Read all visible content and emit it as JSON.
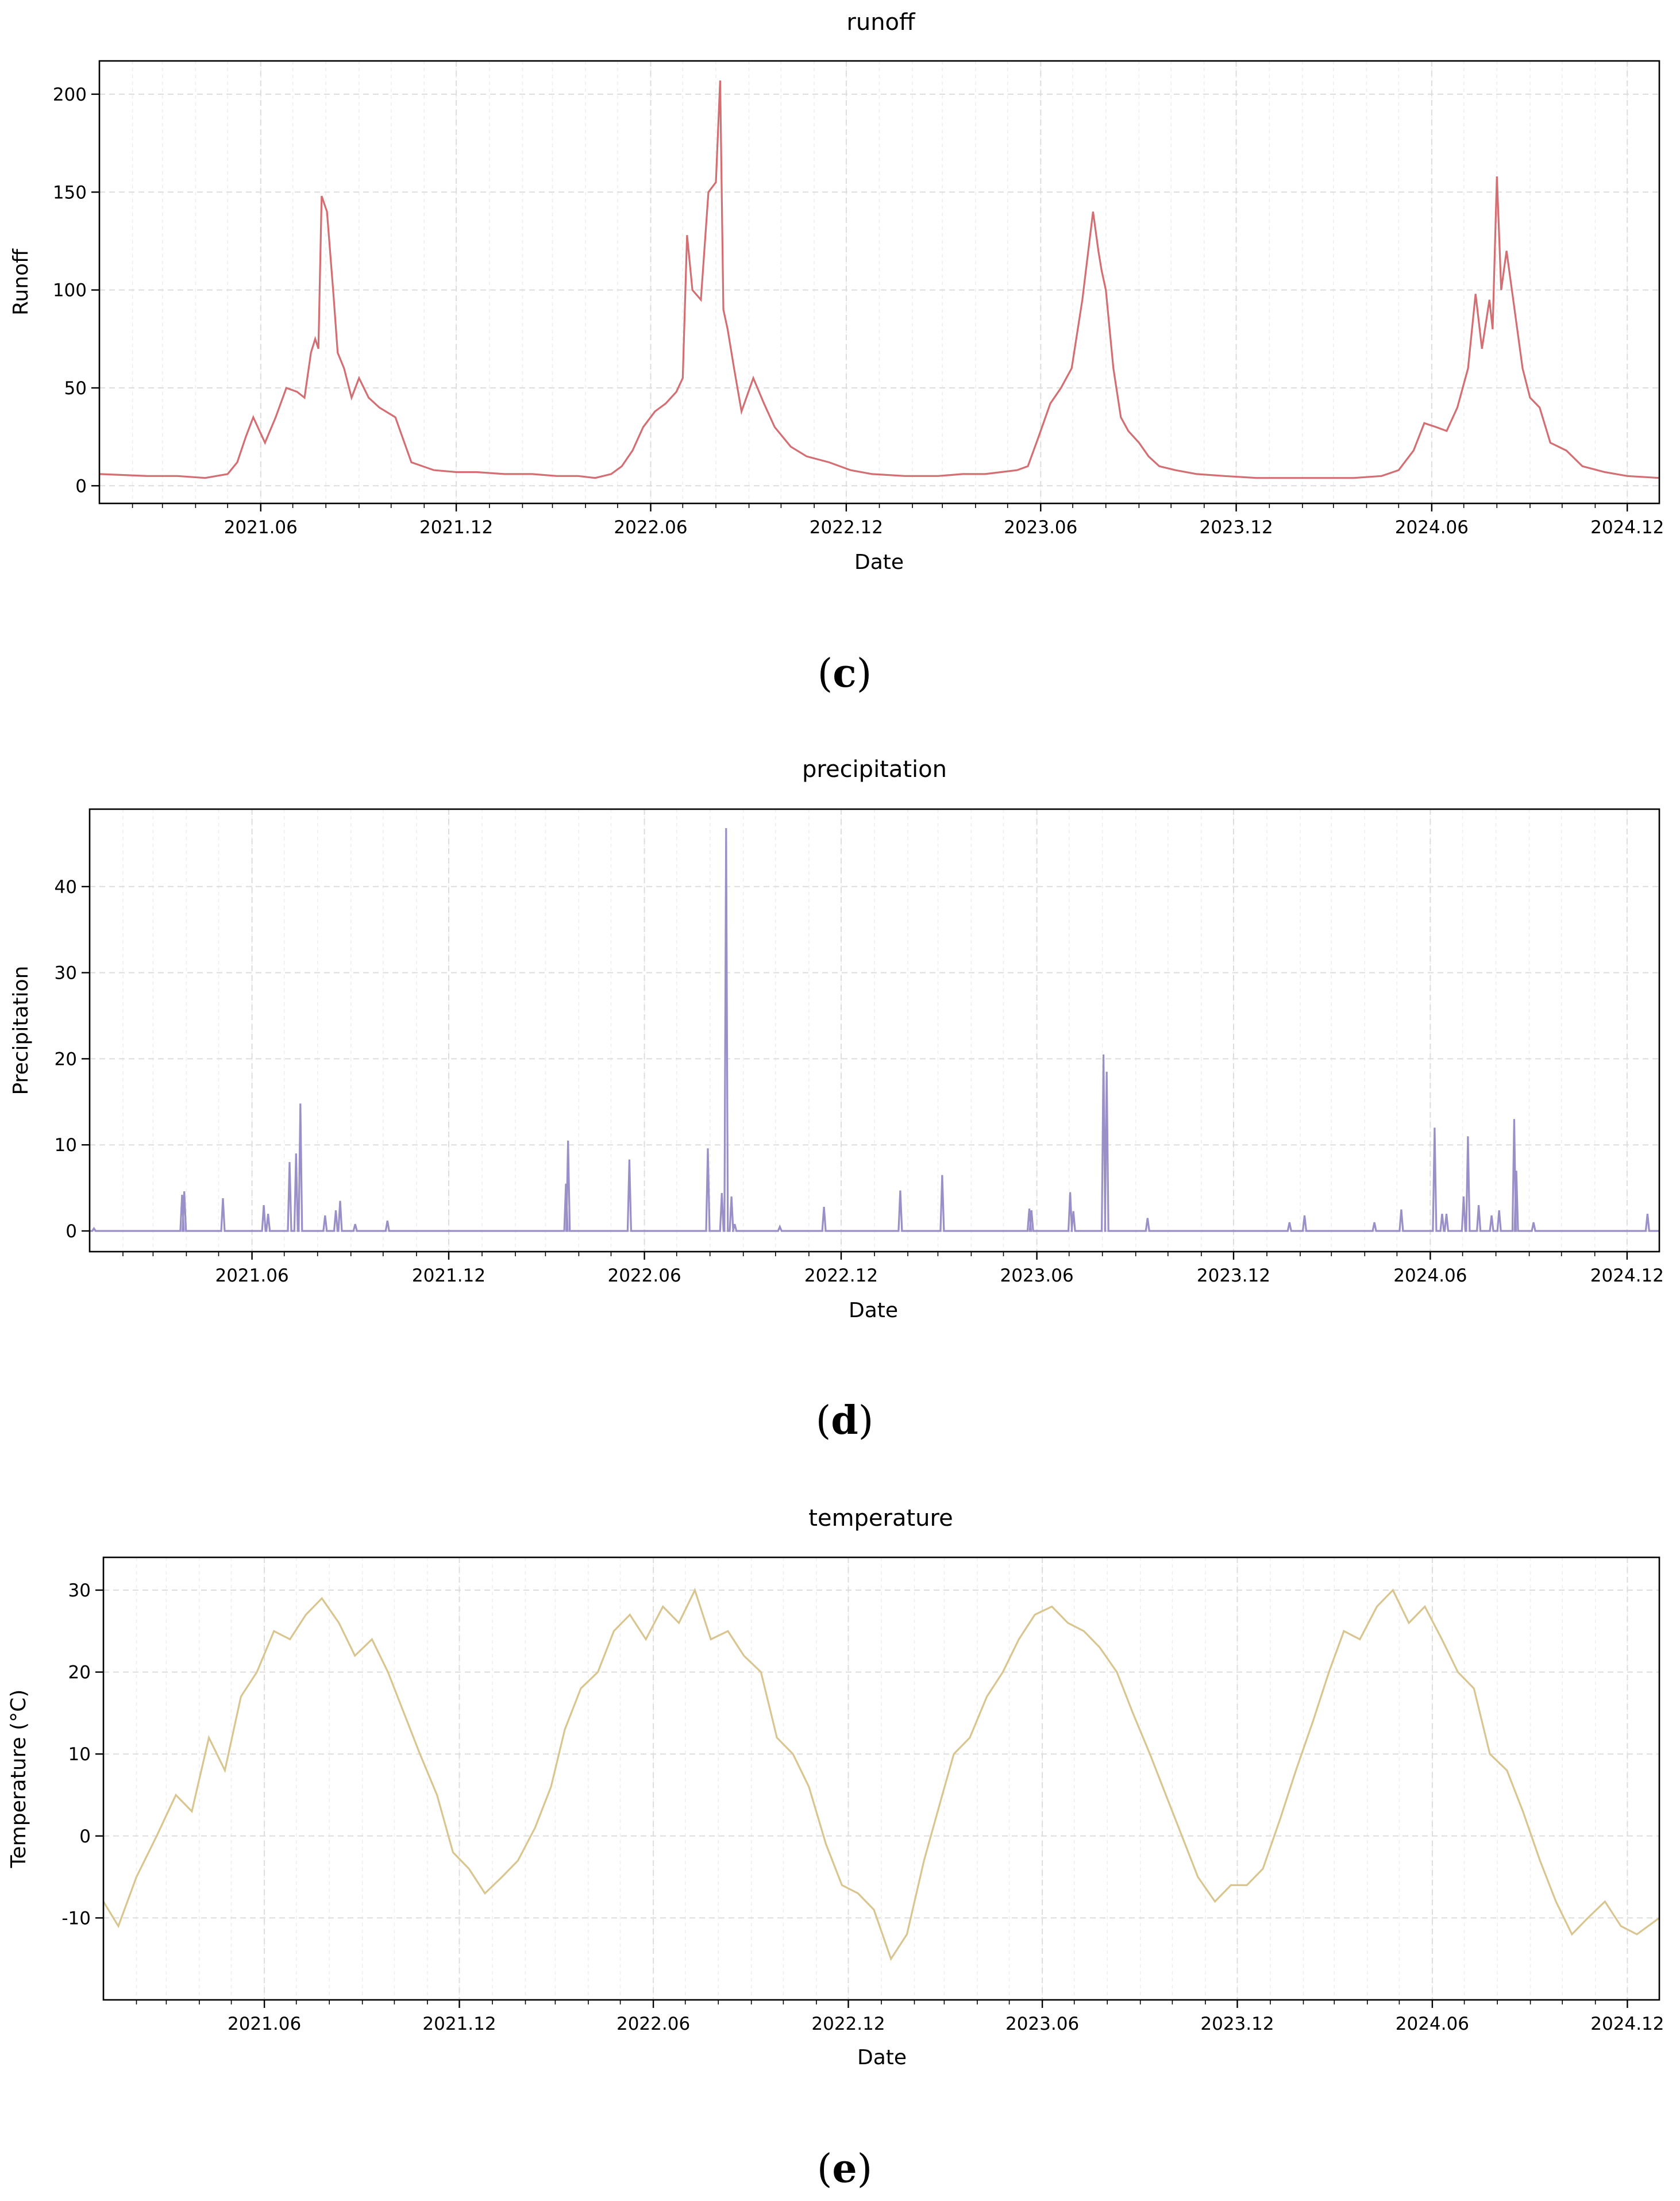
{
  "chart_data": [
    {
      "type": "line",
      "panel_label": "c",
      "title": "runoff",
      "xlabel": "Date",
      "ylabel": "Runoff",
      "color": "#d36e73",
      "x_start": "2021-01-01",
      "x_end": "2024-12-31",
      "xticks": [
        "2021.06",
        "2021.12",
        "2022.06",
        "2022.12",
        "2023.06",
        "2023.12",
        "2024.06",
        "2024.12"
      ],
      "yticks": [
        0,
        50,
        100,
        150,
        200
      ],
      "ylim": [
        -9,
        217
      ],
      "grid": true,
      "series": [
        {
          "name": "runoff",
          "x": [
            "2021-01-01",
            "2021-02-15",
            "2021-03-15",
            "2021-04-10",
            "2021-05-01",
            "2021-05-10",
            "2021-05-18",
            "2021-05-25",
            "2021-06-05",
            "2021-06-15",
            "2021-06-25",
            "2021-07-05",
            "2021-07-12",
            "2021-07-18",
            "2021-07-22",
            "2021-07-25",
            "2021-07-28",
            "2021-08-02",
            "2021-08-08",
            "2021-08-12",
            "2021-08-18",
            "2021-08-25",
            "2021-09-01",
            "2021-09-10",
            "2021-09-20",
            "2021-10-05",
            "2021-10-20",
            "2021-11-10",
            "2021-12-01",
            "2021-12-20",
            "2022-01-15",
            "2022-02-10",
            "2022-03-05",
            "2022-03-25",
            "2022-04-10",
            "2022-04-25",
            "2022-05-05",
            "2022-05-15",
            "2022-05-25",
            "2022-06-05",
            "2022-06-15",
            "2022-06-25",
            "2022-07-01",
            "2022-07-05",
            "2022-07-10",
            "2022-07-18",
            "2022-07-25",
            "2022-08-01",
            "2022-08-05",
            "2022-08-08",
            "2022-08-12",
            "2022-08-18",
            "2022-08-25",
            "2022-09-05",
            "2022-09-15",
            "2022-09-25",
            "2022-10-10",
            "2022-10-25",
            "2022-11-15",
            "2022-12-05",
            "2022-12-25",
            "2023-01-25",
            "2023-02-25",
            "2023-03-20",
            "2023-04-10",
            "2023-04-25",
            "2023-05-10",
            "2023-05-20",
            "2023-05-30",
            "2023-06-10",
            "2023-06-20",
            "2023-06-30",
            "2023-07-10",
            "2023-07-20",
            "2023-07-25",
            "2023-07-28",
            "2023-08-01",
            "2023-08-08",
            "2023-08-15",
            "2023-08-22",
            "2023-09-01",
            "2023-09-10",
            "2023-09-20",
            "2023-10-05",
            "2023-10-25",
            "2023-11-20",
            "2023-12-20",
            "2024-01-20",
            "2024-02-20",
            "2024-03-20",
            "2024-04-15",
            "2024-05-01",
            "2024-05-15",
            "2024-05-25",
            "2024-06-05",
            "2024-06-15",
            "2024-06-25",
            "2024-07-05",
            "2024-07-12",
            "2024-07-18",
            "2024-07-25",
            "2024-07-28",
            "2024-08-01",
            "2024-08-05",
            "2024-08-10",
            "2024-08-15",
            "2024-08-20",
            "2024-08-25",
            "2024-09-01",
            "2024-09-10",
            "2024-09-20",
            "2024-10-05",
            "2024-10-20",
            "2024-11-10",
            "2024-12-01",
            "2024-12-31"
          ],
          "values": [
            6,
            5,
            5,
            4,
            6,
            12,
            25,
            35,
            22,
            35,
            50,
            48,
            45,
            68,
            75,
            70,
            148,
            140,
            98,
            68,
            60,
            45,
            55,
            45,
            40,
            35,
            12,
            8,
            7,
            7,
            6,
            6,
            5,
            5,
            4,
            6,
            10,
            18,
            30,
            38,
            42,
            48,
            55,
            128,
            100,
            95,
            150,
            155,
            207,
            90,
            80,
            60,
            38,
            55,
            42,
            30,
            20,
            15,
            12,
            8,
            6,
            5,
            5,
            6,
            6,
            7,
            8,
            10,
            25,
            42,
            50,
            60,
            95,
            140,
            120,
            110,
            100,
            60,
            35,
            28,
            22,
            15,
            10,
            8,
            6,
            5,
            4,
            4,
            4,
            4,
            5,
            8,
            18,
            32,
            30,
            28,
            40,
            60,
            98,
            70,
            95,
            80,
            158,
            100,
            120,
            100,
            80,
            60,
            45,
            40,
            22,
            18,
            10,
            7,
            5,
            4
          ]
        }
      ]
    },
    {
      "type": "line",
      "panel_label": "d",
      "title": "precipitation",
      "xlabel": "Date",
      "ylabel": "Precipitation",
      "color": "#9b8fc8",
      "x_start": "2021-01-01",
      "x_end": "2024-12-31",
      "xticks": [
        "2021.06",
        "2021.12",
        "2022.06",
        "2022.12",
        "2023.06",
        "2023.12",
        "2024.06",
        "2024.12"
      ],
      "yticks": [
        0,
        10,
        20,
        30,
        40
      ],
      "ylim": [
        -2.4,
        49
      ],
      "grid": true,
      "series": [
        {
          "name": "precipitation",
          "x": [
            "2021-01-05",
            "2021-03-28",
            "2021-03-30",
            "2021-05-05",
            "2021-06-12",
            "2021-06-16",
            "2021-07-06",
            "2021-07-12",
            "2021-07-16",
            "2021-08-08",
            "2021-08-18",
            "2021-08-22",
            "2021-09-05",
            "2021-10-05",
            "2022-03-20",
            "2022-03-22",
            "2022-05-18",
            "2022-07-30",
            "2022-08-12",
            "2022-08-16",
            "2022-08-21",
            "2022-08-24",
            "2022-10-05",
            "2022-11-15",
            "2023-01-25",
            "2023-03-05",
            "2023-05-25",
            "2023-05-27",
            "2023-07-02",
            "2023-07-05",
            "2023-08-02",
            "2023-08-05",
            "2023-09-12",
            "2024-01-22",
            "2024-02-05",
            "2024-04-10",
            "2024-05-05",
            "2024-06-05",
            "2024-06-12",
            "2024-06-16",
            "2024-07-02",
            "2024-07-06",
            "2024-07-16",
            "2024-07-28",
            "2024-08-04",
            "2024-08-18",
            "2024-08-20",
            "2024-09-05",
            "2024-12-20"
          ],
          "values": [
            0.3,
            4.2,
            4.6,
            3.8,
            3.0,
            2.0,
            8.0,
            9.0,
            14.8,
            1.8,
            2.4,
            3.5,
            0.8,
            1.2,
            5.5,
            10.5,
            8.3,
            9.6,
            4.4,
            46.8,
            4.0,
            0.8,
            0.5,
            2.8,
            4.7,
            6.5,
            2.6,
            2.4,
            4.5,
            2.3,
            20.5,
            18.5,
            1.5,
            1.0,
            1.8,
            1.0,
            2.5,
            12.0,
            2.0,
            2.0,
            4.0,
            11.0,
            3.0,
            1.8,
            2.4,
            13.0,
            7.0,
            1.0,
            2.0
          ]
        }
      ]
    },
    {
      "type": "line",
      "panel_label": "e",
      "title": "temperature",
      "xlabel": "Date",
      "ylabel": "Temperature (°C)",
      "color": "#d9c58f",
      "x_start": "2021-01-01",
      "x_end": "2024-12-31",
      "xticks": [
        "2021.06",
        "2021.12",
        "2022.06",
        "2022.12",
        "2023.06",
        "2023.12",
        "2024.06",
        "2024.12"
      ],
      "yticks": [
        -10,
        0,
        10,
        20,
        30
      ],
      "ylim": [
        -20,
        34
      ],
      "grid": true,
      "series": [
        {
          "name": "temperature",
          "x": [
            "2021-01-01",
            "2021-01-15",
            "2021-02-01",
            "2021-02-20",
            "2021-03-10",
            "2021-03-25",
            "2021-04-10",
            "2021-04-25",
            "2021-05-10",
            "2021-05-25",
            "2021-06-10",
            "2021-06-25",
            "2021-07-10",
            "2021-07-25",
            "2021-08-10",
            "2021-08-25",
            "2021-09-10",
            "2021-09-25",
            "2021-10-10",
            "2021-10-25",
            "2021-11-10",
            "2021-11-25",
            "2021-12-10",
            "2021-12-25",
            "2022-01-10",
            "2022-01-25",
            "2022-02-10",
            "2022-02-25",
            "2022-03-10",
            "2022-03-25",
            "2022-04-10",
            "2022-04-25",
            "2022-05-10",
            "2022-05-25",
            "2022-06-10",
            "2022-06-25",
            "2022-07-10",
            "2022-07-25",
            "2022-08-10",
            "2022-08-25",
            "2022-09-10",
            "2022-09-25",
            "2022-10-10",
            "2022-10-25",
            "2022-11-10",
            "2022-11-25",
            "2022-12-10",
            "2022-12-25",
            "2023-01-10",
            "2023-01-25",
            "2023-02-10",
            "2023-02-25",
            "2023-03-10",
            "2023-03-25",
            "2023-04-10",
            "2023-04-25",
            "2023-05-10",
            "2023-05-25",
            "2023-06-10",
            "2023-06-25",
            "2023-07-10",
            "2023-07-25",
            "2023-08-10",
            "2023-08-25",
            "2023-09-10",
            "2023-09-25",
            "2023-10-10",
            "2023-10-25",
            "2023-11-10",
            "2023-11-25",
            "2023-12-10",
            "2023-12-25",
            "2024-01-10",
            "2024-01-25",
            "2024-02-10",
            "2024-02-25",
            "2024-03-10",
            "2024-03-25",
            "2024-04-10",
            "2024-04-25",
            "2024-05-10",
            "2024-05-25",
            "2024-06-10",
            "2024-06-25",
            "2024-07-10",
            "2024-07-25",
            "2024-08-10",
            "2024-08-25",
            "2024-09-10",
            "2024-09-25",
            "2024-10-10",
            "2024-10-25",
            "2024-11-10",
            "2024-11-25",
            "2024-12-10",
            "2024-12-31"
          ],
          "values": [
            -8,
            -11,
            -5,
            0,
            5,
            3,
            12,
            8,
            17,
            20,
            25,
            24,
            27,
            29,
            26,
            22,
            24,
            20,
            15,
            10,
            5,
            -2,
            -4,
            -7,
            -5,
            -3,
            1,
            6,
            13,
            18,
            20,
            25,
            27,
            24,
            28,
            26,
            30,
            24,
            25,
            22,
            20,
            12,
            10,
            6,
            -1,
            -6,
            -7,
            -9,
            -15,
            -12,
            -3,
            4,
            10,
            12,
            17,
            20,
            24,
            27,
            28,
            26,
            25,
            23,
            20,
            15,
            10,
            5,
            0,
            -5,
            -8,
            -6,
            -6,
            -4,
            2,
            8,
            14,
            20,
            25,
            24,
            28,
            30,
            26,
            28,
            24,
            20,
            18,
            10,
            8,
            3,
            -3,
            -8,
            -12,
            -10,
            -8,
            -11,
            -12,
            -10
          ]
        }
      ]
    }
  ]
}
